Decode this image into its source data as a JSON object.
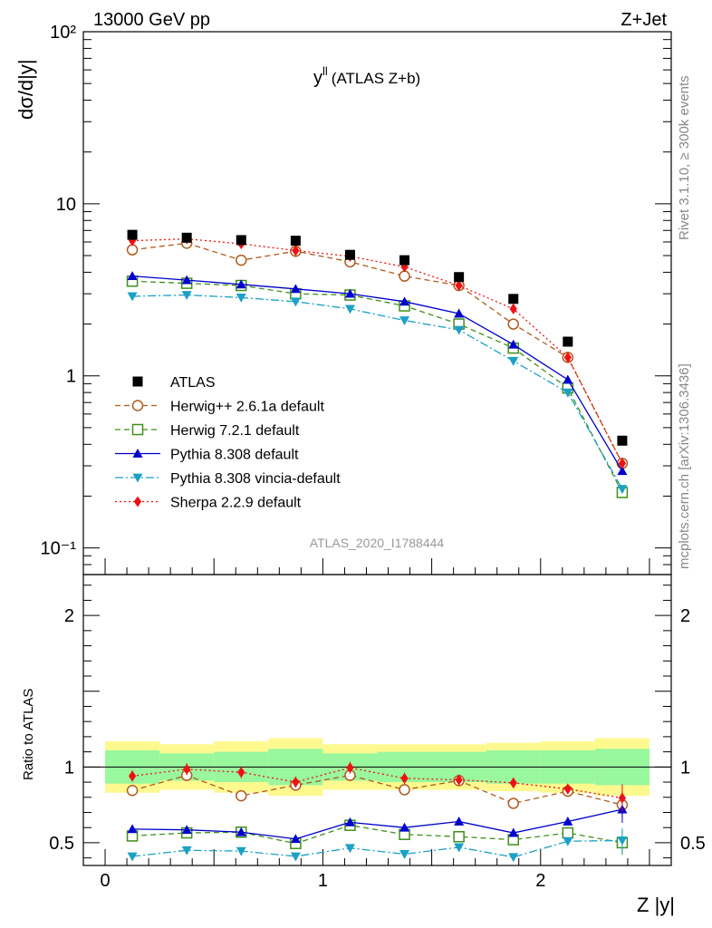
{
  "header": {
    "left": "13000 GeV pp",
    "right": "Z+Jet"
  },
  "side_labels": {
    "rivet": "Rivet 3.1.10, ≥ 300k events",
    "mcplots": "mcplots.cern.ch [arXiv:1306.3436]"
  },
  "chart_data": {
    "type": "line",
    "title_main": "y",
    "title_sup": "ll",
    "title_rest": "(ATLAS Z+b)",
    "analysis_id": "ATLAS_2020_I1788444",
    "xlabel": "Z |y|",
    "ylabel_top": "dσ/d|y|",
    "ylabel_bottom": "Ratio to ATLAS",
    "xlim": [
      -0.1,
      2.6
    ],
    "ylim_top": [
      0.07,
      100
    ],
    "ylim_bottom": [
      0.35,
      2.27
    ],
    "y_scale_top": "log",
    "legend_position": "lower-left",
    "x_ticks": [
      "0",
      "1",
      "2"
    ],
    "y_ticks_top": [
      "10⁻¹",
      "1",
      "10",
      "10²"
    ],
    "y_ticks_bottom": [
      "0.5",
      "1",
      "2"
    ],
    "bin_edges": [
      0.0,
      0.25,
      0.5,
      0.75,
      1.0,
      1.25,
      1.5,
      1.75,
      2.0,
      2.25,
      2.5
    ],
    "x": [
      0.125,
      0.375,
      0.625,
      0.875,
      1.125,
      1.375,
      1.625,
      1.875,
      2.125,
      2.375
    ],
    "data": {
      "name": "ATLAS",
      "color": "#000000",
      "values": [
        6.6,
        6.35,
        6.15,
        6.1,
        5.05,
        4.7,
        3.75,
        2.8,
        1.58,
        0.42
      ]
    },
    "band_inner": [
      0.11,
      0.09,
      0.1,
      0.12,
      0.09,
      0.1,
      0.1,
      0.11,
      0.11,
      0.12
    ],
    "band_outer": [
      0.17,
      0.15,
      0.17,
      0.19,
      0.15,
      0.15,
      0.15,
      0.16,
      0.17,
      0.19
    ],
    "series": [
      {
        "name": "Herwig++ 2.6.1a default",
        "color": "#b05b1e",
        "marker": "circle-open",
        "dash": "6,4",
        "values": [
          5.4,
          5.9,
          4.7,
          5.3,
          4.6,
          3.8,
          3.35,
          2.0,
          1.28,
          0.31
        ],
        "ratio": [
          0.845,
          0.945,
          0.81,
          0.88,
          0.945,
          0.85,
          0.91,
          0.76,
          0.84,
          0.75
        ]
      },
      {
        "name": "Herwig 7.2.1 default",
        "color": "#3f8f1c",
        "marker": "square-open",
        "dash": "6,4",
        "values": [
          3.55,
          3.45,
          3.35,
          3.0,
          2.95,
          2.55,
          2.0,
          1.45,
          0.85,
          0.21
        ],
        "ratio": [
          0.545,
          0.565,
          0.57,
          0.495,
          0.615,
          0.555,
          0.54,
          0.52,
          0.565,
          0.5
        ]
      },
      {
        "name": "Pythia 8.308 default",
        "color": "#0000cc",
        "marker": "triangle-up",
        "dash": "",
        "values": [
          3.8,
          3.6,
          3.4,
          3.2,
          3.0,
          2.7,
          2.3,
          1.52,
          0.95,
          0.28
        ],
        "ratio": [
          0.59,
          0.585,
          0.57,
          0.525,
          0.635,
          0.6,
          0.64,
          0.565,
          0.64,
          0.72
        ]
      },
      {
        "name": "Pythia 8.308 vincia-default",
        "color": "#1ba1c4",
        "marker": "triangle-down",
        "dash": "9,3,2,3",
        "values": [
          2.9,
          2.95,
          2.85,
          2.7,
          2.45,
          2.1,
          1.85,
          1.22,
          0.8,
          0.22
        ],
        "ratio": [
          0.41,
          0.45,
          0.445,
          0.41,
          0.465,
          0.425,
          0.47,
          0.405,
          0.51,
          0.515
        ]
      },
      {
        "name": "Sherpa 2.2.9 default",
        "color": "#ee1111",
        "marker": "diamond",
        "dash": "2,3",
        "values": [
          6.1,
          6.25,
          5.85,
          5.35,
          4.95,
          4.3,
          3.35,
          2.45,
          1.28,
          0.31
        ],
        "ratio": [
          0.94,
          0.985,
          0.965,
          0.9,
          0.995,
          0.925,
          0.915,
          0.895,
          0.855,
          0.795
        ]
      }
    ]
  }
}
